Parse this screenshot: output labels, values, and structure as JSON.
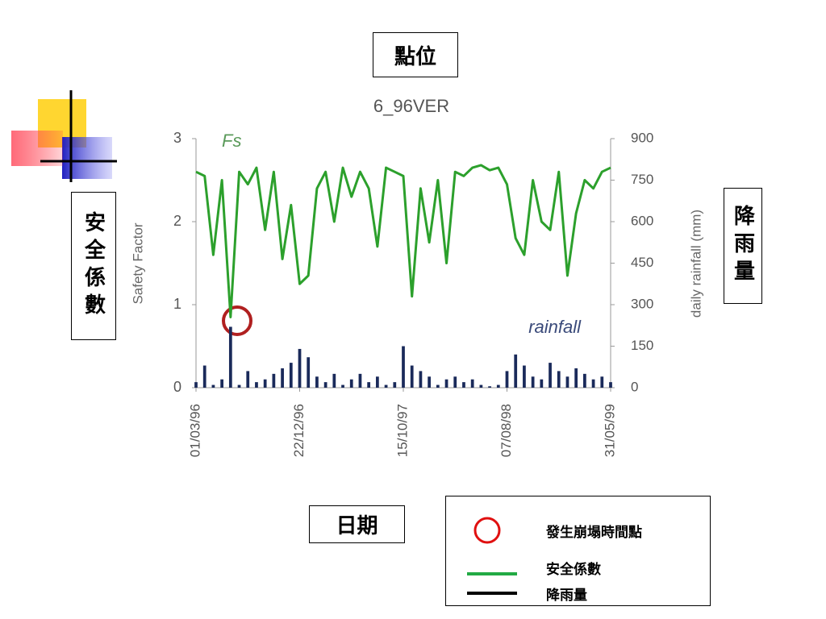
{
  "slide": {
    "location_label": "點位",
    "safety_label": "安全係數",
    "rainfall_label": "降雨量",
    "date_label": "日期",
    "legend": [
      "發生崩塌時間點",
      "安全係數",
      "降雨量"
    ]
  },
  "chart_data": {
    "type": "line",
    "title": "6_96VER",
    "ylabel": "Safety Factor",
    "y2label": "daily rainfall (mm)",
    "categories": [
      "01/03/96",
      null,
      null,
      null,
      null,
      null,
      null,
      null,
      null,
      null,
      null,
      null,
      "22/12/96",
      null,
      null,
      null,
      null,
      null,
      null,
      null,
      null,
      null,
      null,
      null,
      "15/10/97",
      null,
      null,
      null,
      null,
      null,
      null,
      null,
      null,
      null,
      null,
      null,
      "07/08/98",
      null,
      null,
      null,
      null,
      null,
      null,
      null,
      null,
      null,
      null,
      null,
      "31/05/99"
    ],
    "ylim": [
      0,
      3
    ],
    "yticks": [
      0,
      1,
      2,
      3
    ],
    "y2lim": [
      0,
      900
    ],
    "y2ticks": [
      0,
      150,
      300,
      450,
      600,
      750,
      900
    ],
    "series": [
      {
        "name": "Fs",
        "type": "line",
        "color": "#2ca02c",
        "values": [
          2.6,
          2.55,
          1.6,
          2.5,
          0.85,
          2.6,
          2.45,
          2.65,
          1.9,
          2.6,
          1.55,
          2.2,
          1.25,
          1.35,
          2.4,
          2.6,
          2.0,
          2.65,
          2.3,
          2.6,
          2.4,
          1.7,
          2.65,
          2.6,
          2.55,
          1.1,
          2.4,
          1.75,
          2.5,
          1.5,
          2.6,
          2.55,
          2.65,
          2.68,
          2.62,
          2.65,
          2.45,
          1.8,
          1.6,
          2.5,
          2.0,
          1.9,
          2.6,
          1.35,
          2.1,
          2.5,
          2.4,
          2.6,
          2.65
        ]
      },
      {
        "name": "rainfall",
        "type": "bar",
        "axis": "y2",
        "color": "#1a2a5a",
        "values": [
          20,
          80,
          10,
          30,
          220,
          10,
          60,
          20,
          30,
          50,
          70,
          90,
          140,
          110,
          40,
          20,
          50,
          10,
          30,
          50,
          20,
          40,
          10,
          20,
          150,
          80,
          60,
          40,
          10,
          30,
          40,
          20,
          30,
          10,
          5,
          10,
          60,
          120,
          80,
          40,
          30,
          90,
          60,
          40,
          70,
          50,
          30,
          40,
          20
        ]
      }
    ]
  }
}
